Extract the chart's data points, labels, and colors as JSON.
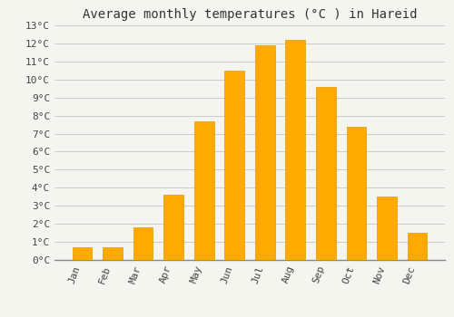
{
  "title": "Average monthly temperatures (°C ) in Hareid",
  "months": [
    "Jan",
    "Feb",
    "Mar",
    "Apr",
    "May",
    "Jun",
    "Jul",
    "Aug",
    "Sep",
    "Oct",
    "Nov",
    "Dec"
  ],
  "values": [
    0.7,
    0.7,
    1.8,
    3.6,
    7.7,
    10.5,
    11.9,
    12.2,
    9.6,
    7.4,
    3.5,
    1.5
  ],
  "bar_color": "#FFAA00",
  "bar_edge_color": "#DD9900",
  "background_color": "#F5F5F0",
  "plot_bg_color": "#F5F5F0",
  "grid_color": "#CCCCCC",
  "ylim": [
    0,
    13
  ],
  "yticks": [
    0,
    1,
    2,
    3,
    4,
    5,
    6,
    7,
    8,
    9,
    10,
    11,
    12,
    13
  ],
  "ytick_labels": [
    "0°C",
    "1°C",
    "2°C",
    "3°C",
    "4°C",
    "5°C",
    "6°C",
    "7°C",
    "8°C",
    "9°C",
    "10°C",
    "11°C",
    "12°C",
    "13°C"
  ],
  "title_fontsize": 10,
  "tick_fontsize": 8,
  "font_family": "monospace",
  "bar_width": 0.65
}
